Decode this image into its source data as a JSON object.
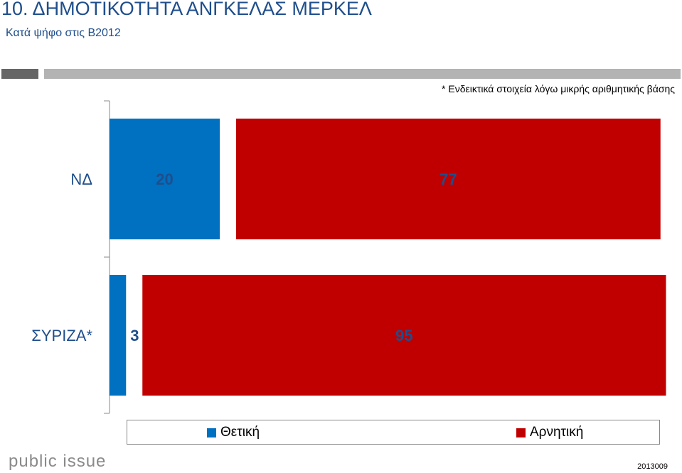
{
  "header": {
    "title": "10. ΔΗΜΟΤΙΚΟΤΗΤΑ ΑΝΓΚΕΛΑΣ ΜΕΡΚΕΛ",
    "subtitle": "Κατά ψήφο στις Β2012",
    "note": "* Ενδεικτικά στοιχεία λόγω μικρής αριθμητικής βάσης"
  },
  "chart_data": {
    "type": "bar",
    "orientation": "horizontal",
    "stacked": true,
    "categories": [
      "ΝΔ",
      "ΣΥΡΙΖΑ*"
    ],
    "series": [
      {
        "name": "Θετική",
        "values": [
          20,
          3
        ],
        "color": "#0070c0"
      },
      {
        "name": "Αρνητική",
        "values": [
          77,
          95
        ],
        "color": "#c00000"
      }
    ],
    "xlim": [
      0,
      100
    ],
    "grid": false,
    "legend": "bottom"
  },
  "footer": {
    "logo": "public issue",
    "code": "2013009"
  }
}
